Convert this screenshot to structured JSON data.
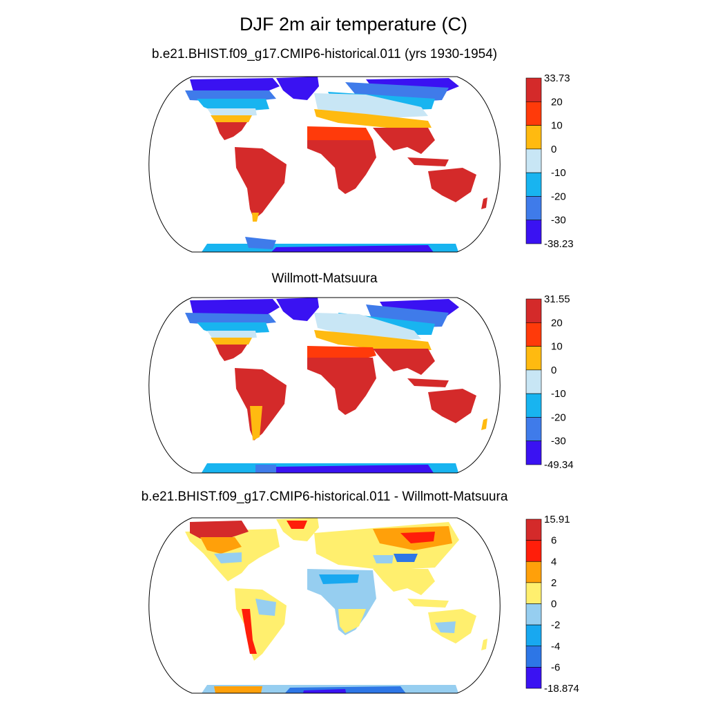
{
  "figure": {
    "title": "DJF 2m air temperature (C)"
  },
  "panels": [
    {
      "title": "b.e21.BHIST.f09_g17.CMIP6-historical.011 (yrs 1930-1954)",
      "colorbar": {
        "labels": [
          "33.73",
          "20",
          "10",
          "0",
          "-10",
          "-20",
          "-30",
          "-38.23"
        ],
        "colors": [
          "#d42a2a",
          "#ff3a0a",
          "#ffba10",
          "#c8e6f5",
          "#18b4f0",
          "#3f7bea",
          "#3a12f2"
        ]
      }
    },
    {
      "title": "Willmott-Matsuura",
      "colorbar": {
        "labels": [
          "31.55",
          "20",
          "10",
          "0",
          "-10",
          "-20",
          "-30",
          "-49.34"
        ],
        "colors": [
          "#d42a2a",
          "#ff3a0a",
          "#ffba10",
          "#c8e6f5",
          "#18b4f0",
          "#3f7bea",
          "#3a12f2"
        ]
      }
    },
    {
      "title": "b.e21.BHIST.f09_g17.CMIP6-historical.011 - Willmott-Matsuura",
      "colorbar": {
        "labels": [
          "15.91",
          "6",
          "4",
          "2",
          "0",
          "-2",
          "-4",
          "-6",
          "-18.874"
        ],
        "colors": [
          "#d42a2a",
          "#ff1e0a",
          "#ffa00a",
          "#ffef6e",
          "#96cef0",
          "#18a8f0",
          "#2d76e6",
          "#3a12f2"
        ]
      }
    }
  ]
}
